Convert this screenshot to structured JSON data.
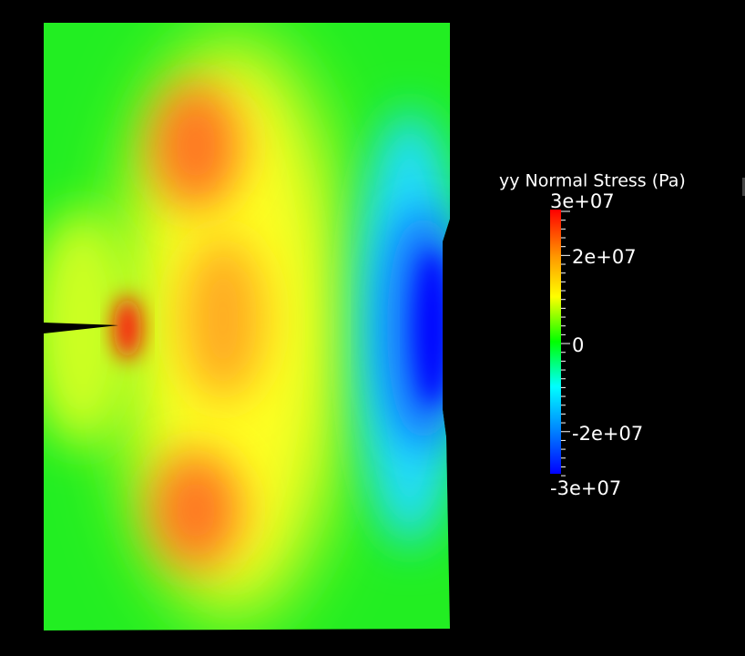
{
  "colorbar": {
    "title": "yy Normal Stress (Pa)",
    "labels": [
      "3e+07",
      "2e+07",
      "0",
      "-2e+07",
      "-3e+07"
    ]
  }
}
